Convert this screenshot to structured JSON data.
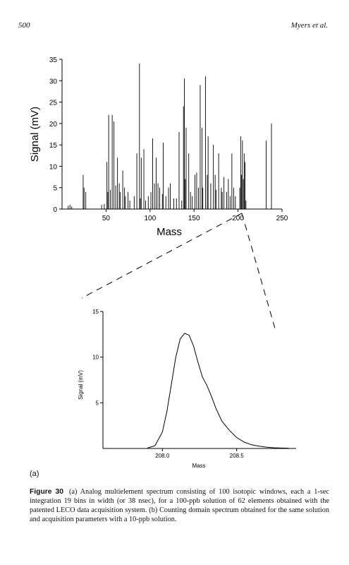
{
  "page": {
    "number": "500",
    "running_head": "Myers et al."
  },
  "panel_label": "(a)",
  "caption": {
    "label": "Figure 30",
    "text": "(a) Analog multielement spectrum consisting of 100 isotopic windows, each a 1-sec integration 19 bins in width (or 38 nsec), for a 100-ppb solution of 62 elements obtained with the patented LECO data acquisition system. (b) Counting domain spectrum obtained for the same solution and acquisition parameters with a 10-ppb solution."
  },
  "chart_data": [
    {
      "type": "bar",
      "xlabel": "Mass",
      "ylabel": "Signal (mV)",
      "xlim": [
        0,
        250
      ],
      "ylim": [
        0,
        35
      ],
      "xticks": [
        50,
        100,
        150,
        200,
        250
      ],
      "yticks": [
        0,
        5,
        10,
        15,
        20,
        25,
        30,
        35
      ],
      "peaks": [
        {
          "x": 7,
          "y": 0.8
        },
        {
          "x": 9,
          "y": 1.0
        },
        {
          "x": 11,
          "y": 0.6
        },
        {
          "x": 24,
          "y": 8.0
        },
        {
          "x": 25,
          "y": 5.0
        },
        {
          "x": 27,
          "y": 4.0
        },
        {
          "x": 45,
          "y": 1.0
        },
        {
          "x": 48,
          "y": 1.2
        },
        {
          "x": 51,
          "y": 11.0
        },
        {
          "x": 52,
          "y": 4.0
        },
        {
          "x": 53,
          "y": 22.0
        },
        {
          "x": 55,
          "y": 4.5
        },
        {
          "x": 57,
          "y": 22.0
        },
        {
          "x": 59,
          "y": 20.5
        },
        {
          "x": 61,
          "y": 5.5
        },
        {
          "x": 63,
          "y": 12.0
        },
        {
          "x": 65,
          "y": 6.0
        },
        {
          "x": 66,
          "y": 4.0
        },
        {
          "x": 69,
          "y": 9.0
        },
        {
          "x": 71,
          "y": 5.0
        },
        {
          "x": 72,
          "y": 3.0
        },
        {
          "x": 75,
          "y": 4.0
        },
        {
          "x": 77,
          "y": 2.0
        },
        {
          "x": 82,
          "y": 3.0
        },
        {
          "x": 85,
          "y": 13.0
        },
        {
          "x": 88,
          "y": 34.0
        },
        {
          "x": 89,
          "y": 2.5
        },
        {
          "x": 90,
          "y": 12.0
        },
        {
          "x": 93,
          "y": 14.0
        },
        {
          "x": 95,
          "y": 2.0
        },
        {
          "x": 98,
          "y": 3.0
        },
        {
          "x": 101,
          "y": 4.0
        },
        {
          "x": 103,
          "y": 16.5
        },
        {
          "x": 105,
          "y": 6.0
        },
        {
          "x": 107,
          "y": 12.0
        },
        {
          "x": 109,
          "y": 6.0
        },
        {
          "x": 111,
          "y": 5.0
        },
        {
          "x": 114,
          "y": 3.5
        },
        {
          "x": 115,
          "y": 15.5
        },
        {
          "x": 118,
          "y": 3.0
        },
        {
          "x": 121,
          "y": 5.0
        },
        {
          "x": 123,
          "y": 6.0
        },
        {
          "x": 127,
          "y": 2.5
        },
        {
          "x": 130,
          "y": 2.5
        },
        {
          "x": 133,
          "y": 18.0
        },
        {
          "x": 136,
          "y": 2.0
        },
        {
          "x": 138,
          "y": 24.0
        },
        {
          "x": 139,
          "y": 30.5
        },
        {
          "x": 140,
          "y": 7.0
        },
        {
          "x": 141,
          "y": 19.0
        },
        {
          "x": 144,
          "y": 13.0
        },
        {
          "x": 146,
          "y": 4.0
        },
        {
          "x": 148,
          "y": 3.0
        },
        {
          "x": 151,
          "y": 8.0
        },
        {
          "x": 153,
          "y": 8.5
        },
        {
          "x": 155,
          "y": 5.0
        },
        {
          "x": 157,
          "y": 29.0
        },
        {
          "x": 159,
          "y": 19.0
        },
        {
          "x": 160,
          "y": 5.0
        },
        {
          "x": 163,
          "y": 31.0
        },
        {
          "x": 165,
          "y": 8.0
        },
        {
          "x": 166,
          "y": 17.0
        },
        {
          "x": 169,
          "y": 6.0
        },
        {
          "x": 172,
          "y": 15.0
        },
        {
          "x": 174,
          "y": 8.0
        },
        {
          "x": 175,
          "y": 4.5
        },
        {
          "x": 178,
          "y": 13.0
        },
        {
          "x": 181,
          "y": 5.0
        },
        {
          "x": 182,
          "y": 4.0
        },
        {
          "x": 184,
          "y": 7.5
        },
        {
          "x": 187,
          "y": 4.0
        },
        {
          "x": 189,
          "y": 7.0
        },
        {
          "x": 191,
          "y": 3.0
        },
        {
          "x": 193,
          "y": 13.0
        },
        {
          "x": 195,
          "y": 5.0
        },
        {
          "x": 197,
          "y": 3.0
        },
        {
          "x": 202,
          "y": 5.0
        },
        {
          "x": 203,
          "y": 17.0
        },
        {
          "x": 204,
          "y": 8.0
        },
        {
          "x": 205,
          "y": 16.0
        },
        {
          "x": 206,
          "y": 7.0
        },
        {
          "x": 207,
          "y": 13.0
        },
        {
          "x": 208,
          "y": 11.0
        },
        {
          "x": 209,
          "y": 2.0
        },
        {
          "x": 232,
          "y": 16.0
        },
        {
          "x": 238,
          "y": 20.0
        }
      ]
    },
    {
      "type": "line",
      "xlabel": "Mass",
      "ylabel": "Signal (mV)",
      "xlim": [
        207.6,
        208.9
      ],
      "ylim": [
        0,
        15
      ],
      "xticks": [
        208.0,
        208.5
      ],
      "xtick_labels": [
        "208.0",
        "208.5"
      ],
      "yticks": [
        5,
        10,
        15
      ],
      "ytick_labels": [
        "5",
        "10",
        "15"
      ],
      "series": [
        {
          "x": [
            207.9,
            207.95,
            208.0,
            208.03,
            208.06,
            208.09,
            208.12,
            208.15,
            208.18,
            208.21,
            208.24,
            208.27,
            208.3,
            208.33,
            208.36,
            208.4,
            208.45,
            208.5,
            208.55,
            208.6,
            208.65,
            208.7,
            208.75,
            208.8,
            208.85
          ],
          "y": [
            0.05,
            0.3,
            1.8,
            4.0,
            7.0,
            10.0,
            12.0,
            12.6,
            12.4,
            11.2,
            9.4,
            7.8,
            6.9,
            5.7,
            4.4,
            3.0,
            2.0,
            1.2,
            0.7,
            0.4,
            0.25,
            0.15,
            0.08,
            0.05,
            0.03
          ]
        }
      ]
    }
  ],
  "connectors": {
    "color": "#111111"
  }
}
